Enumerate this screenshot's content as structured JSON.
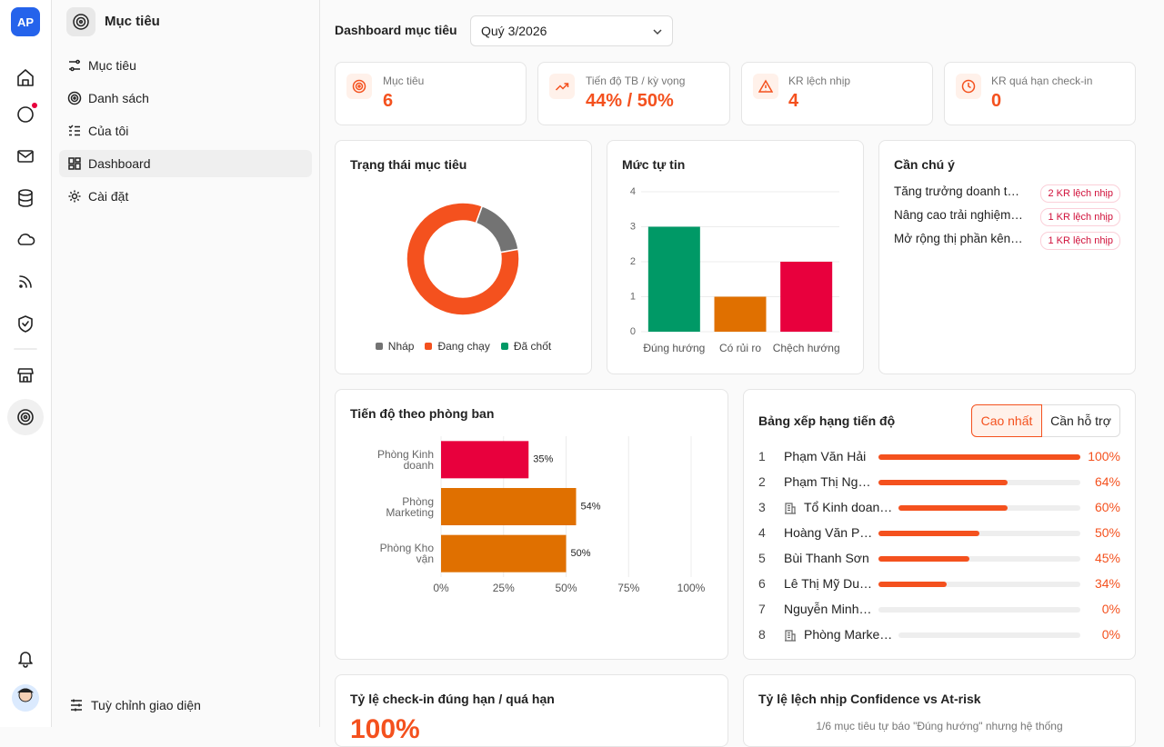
{
  "app": {
    "logo": "AP"
  },
  "sidebar": {
    "title": "Mục tiêu",
    "items": [
      "Mục tiêu",
      "Danh sách",
      "Của tôi",
      "Dashboard",
      "Cài đặt"
    ],
    "footer": "Tuỳ chỉnh giao diện"
  },
  "header": {
    "title": "Dashboard mục tiêu",
    "period": "Quý 3/2026"
  },
  "stats": [
    {
      "label": "Mục tiêu",
      "value": 6
    },
    {
      "label": "Tiến độ TB / kỳ vọng",
      "value": "44% / 50%"
    },
    {
      "label": "KR lệch nhịp",
      "value": 4
    },
    {
      "label": "KR quá hạn check-in",
      "value": 0
    }
  ],
  "status_chart": {
    "type": "pie",
    "title": "Trạng thái mục tiêu",
    "series": [
      {
        "name": "Nháp",
        "color": "#737373",
        "value": 1
      },
      {
        "name": "Đang chạy",
        "color": "#f4511e",
        "value": 5
      },
      {
        "name": "Đã chốt",
        "color": "#009966",
        "value": 0
      }
    ]
  },
  "confidence_chart": {
    "type": "bar",
    "title": "Mức tự tin",
    "categories": [
      "Đúng hướng",
      "Có rủi ro",
      "Chệch hướng"
    ],
    "values": [
      3,
      1,
      2
    ],
    "colors": [
      "#009966",
      "#e07000",
      "#e8003d"
    ],
    "ylim": [
      0,
      4
    ],
    "yticks": [
      0,
      1,
      2,
      3,
      4
    ],
    "grid": true
  },
  "attention": {
    "title": "Cần chú ý",
    "items": [
      {
        "name": "Tăng trưởng doanh t…",
        "badge": "2 KR lệch nhịp"
      },
      {
        "name": "Nâng cao trải nghiệm…",
        "badge": "1 KR lệch nhịp"
      },
      {
        "name": "Mở rộng thị phần kên…",
        "badge": "1 KR lệch nhịp"
      }
    ]
  },
  "department_chart": {
    "type": "hbar",
    "title": "Tiến độ theo phòng ban",
    "categories": [
      "Phòng Kinh doanh",
      "Phòng Marketing",
      "Phòng Kho vận"
    ],
    "values": [
      35,
      54,
      50
    ],
    "value_labels": [
      "35%",
      "54%",
      "50%"
    ],
    "colors": [
      "#e8003d",
      "#e07000",
      "#e07000"
    ],
    "xlim": [
      0,
      100
    ],
    "xticks": [
      {
        "value": 0,
        "label": "0%"
      },
      {
        "value": 25,
        "label": "25%"
      },
      {
        "value": 50,
        "label": "50%"
      },
      {
        "value": 75,
        "label": "75%"
      },
      {
        "value": 100,
        "label": "100%"
      }
    ],
    "grid": true
  },
  "ranking": {
    "title": "Bảng xếp hạng tiến độ",
    "tabs": [
      "Cao nhất",
      "Cần hỗ trợ"
    ],
    "color": "#f4511e",
    "xlim": [
      0,
      100
    ],
    "ranks": [
      1,
      2,
      3,
      4,
      5,
      6,
      7,
      8
    ],
    "names": [
      "Phạm Văn Hải",
      "Phạm Thị Ng…",
      "Tổ Kinh doan…",
      "Hoàng Văn P…",
      "Bùi Thanh Sơn",
      "Lê Thị Mỹ Du…",
      "Nguyễn Minh…",
      "Phòng Marke…"
    ],
    "is_team": [
      false,
      false,
      true,
      false,
      false,
      false,
      false,
      true
    ],
    "values": [
      100,
      64,
      60,
      50,
      45,
      34,
      0,
      0
    ],
    "value_labels": [
      "100%",
      "64%",
      "60%",
      "50%",
      "45%",
      "34%",
      "0%",
      "0%"
    ]
  },
  "checkin": {
    "title": "Tỷ lệ check-in đúng hạn / quá hạn",
    "value": "100%"
  },
  "deviation": {
    "title": "Tỷ lệ lệch nhịp Confidence vs At-risk",
    "note": "1/6 mục tiêu tự báo \"Đúng hướng\" nhưng hệ thống"
  }
}
